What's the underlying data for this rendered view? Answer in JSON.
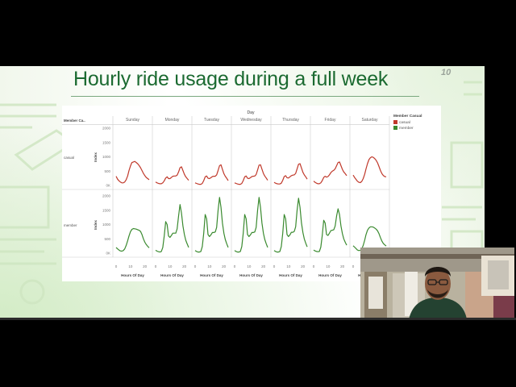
{
  "slide": {
    "title": "Hourly ride usage during a full week",
    "number": "10"
  },
  "chart_data": {
    "type": "line",
    "column_header": "Day",
    "row_header": "Member Ca..",
    "columns": [
      "Sunday",
      "Monday",
      "Tuesday",
      "Wednesday",
      "Thursday",
      "Friday",
      "Saturday"
    ],
    "rows": [
      "casual",
      "member"
    ],
    "ylabel": "Index",
    "xlabel": "Hours Of Day",
    "x_ticks": [
      0,
      10,
      20
    ],
    "y_ticks": [
      "0K",
      "500",
      "1000",
      "1500",
      "2000"
    ],
    "ylim": [
      0,
      2000
    ],
    "xlim": [
      0,
      23
    ],
    "legend": {
      "title": "Member Casual",
      "position": "right",
      "items": [
        {
          "label": "casual",
          "color": "#c0392b"
        },
        {
          "label": "member",
          "color": "#3a8a2f"
        }
      ]
    },
    "series": {
      "casual": {
        "Sunday": [
          320,
          220,
          160,
          120,
          90,
          90,
          120,
          200,
          330,
          520,
          680,
          800,
          820,
          840,
          800,
          760,
          700,
          620,
          520,
          420,
          340,
          280,
          240,
          200
        ],
        "Monday": [
          120,
          90,
          70,
          60,
          60,
          90,
          160,
          260,
          300,
          240,
          240,
          280,
          320,
          330,
          330,
          360,
          470,
          620,
          650,
          520,
          390,
          300,
          240,
          180
        ],
        "Tuesday": [
          90,
          70,
          50,
          40,
          40,
          70,
          170,
          300,
          330,
          250,
          240,
          270,
          310,
          320,
          320,
          370,
          520,
          690,
          720,
          560,
          410,
          320,
          250,
          170
        ],
        "Wednesday": [
          90,
          70,
          50,
          40,
          40,
          70,
          170,
          300,
          330,
          250,
          240,
          270,
          310,
          320,
          330,
          380,
          540,
          710,
          720,
          570,
          420,
          330,
          260,
          180
        ],
        "Thursday": [
          110,
          80,
          60,
          50,
          50,
          80,
          180,
          310,
          340,
          270,
          260,
          300,
          340,
          360,
          370,
          420,
          580,
          740,
          760,
          610,
          460,
          370,
          300,
          220
        ],
        "Friday": [
          150,
          110,
          80,
          60,
          60,
          90,
          170,
          280,
          320,
          290,
          310,
          370,
          450,
          500,
          530,
          580,
          690,
          800,
          820,
          690,
          560,
          470,
          410,
          340
        ],
        "Saturday": [
          360,
          280,
          210,
          150,
          110,
          100,
          140,
          240,
          390,
          580,
          760,
          900,
          970,
          1000,
          980,
          940,
          880,
          790,
          660,
          520,
          410,
          350,
          310,
          300
        ]
      },
      "member": {
        "Sunday": [
          200,
          150,
          110,
          80,
          70,
          90,
          150,
          270,
          430,
          600,
          750,
          830,
          860,
          850,
          840,
          820,
          800,
          760,
          650,
          500,
          380,
          300,
          240,
          190
        ],
        "Monday": [
          100,
          70,
          50,
          40,
          60,
          200,
          600,
          1100,
          1000,
          600,
          550,
          620,
          700,
          700,
          700,
          850,
          1300,
          1700,
          1400,
          950,
          650,
          450,
          320,
          200
        ],
        "Tuesday": [
          90,
          60,
          40,
          40,
          60,
          230,
          700,
          1350,
          1200,
          650,
          580,
          640,
          720,
          720,
          740,
          900,
          1500,
          1950,
          1600,
          1050,
          700,
          480,
          330,
          200
        ],
        "Wednesday": [
          90,
          60,
          40,
          40,
          60,
          230,
          700,
          1350,
          1200,
          650,
          580,
          640,
          720,
          720,
          740,
          900,
          1500,
          1950,
          1600,
          1050,
          700,
          480,
          330,
          200
        ],
        "Thursday": [
          90,
          60,
          40,
          40,
          60,
          230,
          700,
          1350,
          1200,
          650,
          580,
          640,
          730,
          730,
          760,
          920,
          1500,
          1920,
          1600,
          1060,
          720,
          500,
          350,
          220
        ],
        "Friday": [
          110,
          80,
          60,
          50,
          60,
          210,
          620,
          1150,
          1050,
          650,
          620,
          700,
          790,
          800,
          820,
          950,
          1300,
          1550,
          1350,
          950,
          680,
          500,
          380,
          280
        ],
        "Saturday": [
          260,
          210,
          160,
          110,
          90,
          100,
          150,
          270,
          450,
          650,
          800,
          880,
          920,
          920,
          910,
          880,
          840,
          780,
          680,
          540,
          420,
          340,
          290,
          250
        ]
      }
    }
  }
}
